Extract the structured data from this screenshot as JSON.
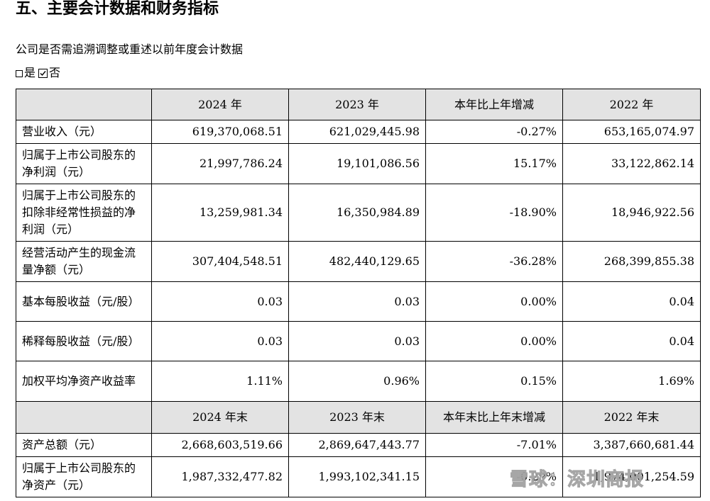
{
  "heading": "五、主要会计数据和财务指标",
  "question": "公司是否需追溯调整或重述以前年度会计数据",
  "options": {
    "yes": "是",
    "no": "否"
  },
  "table1": {
    "headers": [
      "2024 年",
      "2023 年",
      "本年比上年增减",
      "2022 年"
    ],
    "rows": [
      {
        "label": "营业收入（元）",
        "values": [
          "619,370,068.51",
          "621,029,445.98",
          "-0.27%",
          "653,165,074.97"
        ]
      },
      {
        "label": "归属于上市公司股东的净利润（元）",
        "values": [
          "21,997,786.24",
          "19,101,086.56",
          "15.17%",
          "33,122,862.14"
        ]
      },
      {
        "label": "归属于上市公司股东的扣除非经常性损益的净利润（元）",
        "values": [
          "13,259,981.34",
          "16,350,984.89",
          "-18.90%",
          "18,946,922.56"
        ]
      },
      {
        "label": "经营活动产生的现金流量净额（元）",
        "values": [
          "307,404,548.51",
          "482,440,129.65",
          "-36.28%",
          "268,399,855.38"
        ]
      },
      {
        "label": "基本每股收益（元/股）",
        "values": [
          "0.03",
          "0.03",
          "0.00%",
          "0.04"
        ]
      },
      {
        "label": "稀释每股收益（元/股）",
        "values": [
          "0.03",
          "0.03",
          "0.00%",
          "0.04"
        ]
      },
      {
        "label": "加权平均净资产收益率",
        "values": [
          "1.11%",
          "0.96%",
          "0.15%",
          "1.69%"
        ]
      }
    ]
  },
  "table2": {
    "headers": [
      "2024 年末",
      "2023 年末",
      "本年末比上年末增减",
      "2022 年末"
    ],
    "rows": [
      {
        "label": "资产总额（元）",
        "values": [
          "2,668,603,519.66",
          "2,869,647,443.77",
          "-7.01%",
          "3,387,660,681.44"
        ]
      },
      {
        "label": "归属于上市公司股东的净资产（元）",
        "values": [
          "1,987,332,477.82",
          "1,993,102,341.15",
          "-0.29%",
          "1,974,001,254.59"
        ]
      }
    ]
  },
  "watermark": "雪球：深圳商报"
}
